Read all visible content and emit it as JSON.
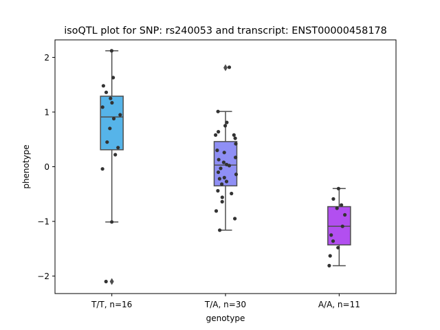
{
  "chart_data": {
    "type": "box",
    "title": "isoQTL plot for SNP: rs240053 and transcript: ENST00000458178",
    "xlabel": "genotype",
    "ylabel": "phenotype",
    "ylim": [
      -2.32,
      2.32
    ],
    "yticks": [
      -2,
      -1,
      0,
      1,
      2
    ],
    "ytick_labels": [
      "−2",
      "−1",
      "0",
      "1",
      "2"
    ],
    "grid": false,
    "legend": "none",
    "categories": [
      "T/T, n=16",
      "T/A, n=30",
      "A/A, n=11"
    ],
    "boxes": [
      {
        "color": "#56b4e9",
        "q1": 0.31,
        "median": 0.91,
        "q3": 1.29,
        "whisker_low": -1.01,
        "whisker_high": 2.12,
        "outliers": [
          -2.1
        ]
      },
      {
        "color": "#8f8ff5",
        "q1": -0.35,
        "median": 0.03,
        "q3": 0.46,
        "whisker_low": -1.16,
        "whisker_high": 1.01,
        "outliers": [
          1.81
        ]
      },
      {
        "color": "#b24ff0",
        "q1": -1.43,
        "median": -1.09,
        "q3": -0.73,
        "whisker_low": -1.81,
        "whisker_high": -0.4,
        "outliers": []
      }
    ],
    "points": [
      [
        2.12,
        1.63,
        1.48,
        1.36,
        1.25,
        1.17,
        1.09,
        0.95,
        0.88,
        0.7,
        0.45,
        0.35,
        0.22,
        -0.04,
        -1.01,
        -2.1
      ],
      [
        1.82,
        1.01,
        0.81,
        0.75,
        0.64,
        0.58,
        0.52,
        0.42,
        0.3,
        0.26,
        0.17,
        0.13,
        0.08,
        0.04,
        0.02,
        -0.03,
        -0.1,
        -0.14,
        -0.2,
        -0.22,
        -0.27,
        -0.32,
        -0.44,
        -0.49,
        -0.56,
        -0.64,
        -0.81,
        -0.95,
        -1.16,
        0.58
      ],
      [
        -0.4,
        -0.59,
        -0.7,
        -0.76,
        -0.88,
        -1.09,
        -1.25,
        -1.36,
        -1.48,
        -1.63,
        -1.81
      ]
    ]
  }
}
